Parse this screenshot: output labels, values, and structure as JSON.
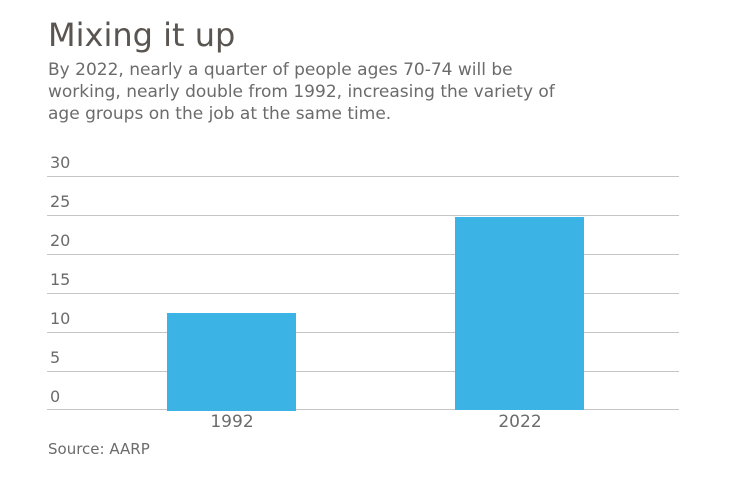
{
  "header": {
    "title": "Mixing it up",
    "subtitle_lines": [
      "By 2022, nearly a quarter of people ages 70-74 will be",
      "working, nearly double from 1992, increasing the variety of",
      "age groups on the job at the same time."
    ]
  },
  "chart_data": {
    "type": "bar",
    "title": "Mixing it up",
    "categories": [
      "1992",
      "2022"
    ],
    "values": [
      12.5,
      24.8
    ],
    "xlabel": "",
    "ylabel": "",
    "ylim": [
      0,
      30
    ],
    "yticks": [
      0,
      5,
      10,
      15,
      20,
      25,
      30
    ],
    "grid": true,
    "legend": false,
    "bar_color": "#3bb4e5"
  },
  "footer": {
    "source": "Source: AARP"
  },
  "colors": {
    "bar": "#3bb4e5",
    "gridline": "#c5c5c5",
    "title_text": "#5a5550",
    "body_text": "#6b6b6b"
  }
}
